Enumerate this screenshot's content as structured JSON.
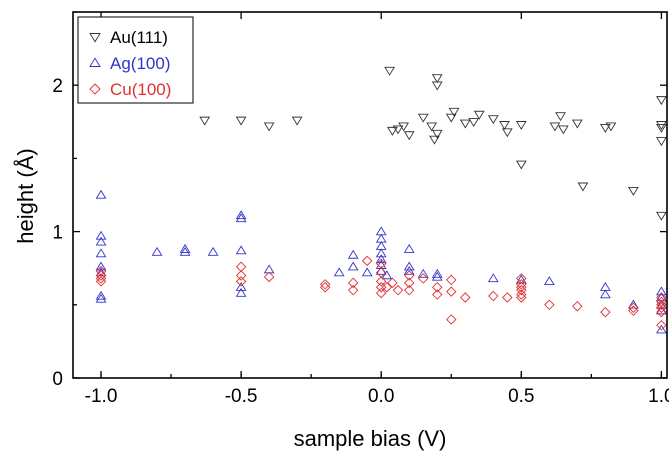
{
  "chart_data": {
    "type": "scatter",
    "xlabel": "sample bias (V)",
    "ylabel": "height (Å)",
    "xlim": [
      -1.1,
      1.02
    ],
    "ylim": [
      0,
      2.5
    ],
    "x_ticks": [
      -1.0,
      -0.5,
      0.0,
      0.5,
      1.0
    ],
    "x_tick_labels": [
      "-1.0",
      "-0.5",
      "0.0",
      "0.5",
      "1.0"
    ],
    "y_ticks": [
      0,
      1,
      2
    ],
    "y_tick_labels": [
      "0",
      "1",
      "2"
    ],
    "legend_position": "top-left",
    "series": [
      {
        "name": "Au(111)",
        "marker": "triangle-down",
        "color": "#333333",
        "points": [
          [
            -0.63,
            1.76
          ],
          [
            -0.5,
            1.76
          ],
          [
            -0.4,
            1.72
          ],
          [
            -0.3,
            1.76
          ],
          [
            0.03,
            2.1
          ],
          [
            0.04,
            1.69
          ],
          [
            0.06,
            1.7
          ],
          [
            0.08,
            1.72
          ],
          [
            0.1,
            1.66
          ],
          [
            0.15,
            1.78
          ],
          [
            0.18,
            1.72
          ],
          [
            0.19,
            1.63
          ],
          [
            0.2,
            2.05
          ],
          [
            0.2,
            2.0
          ],
          [
            0.2,
            1.67
          ],
          [
            0.25,
            1.78
          ],
          [
            0.26,
            1.82
          ],
          [
            0.3,
            1.74
          ],
          [
            0.33,
            1.75
          ],
          [
            0.35,
            1.8
          ],
          [
            0.4,
            1.77
          ],
          [
            0.44,
            1.73
          ],
          [
            0.45,
            1.68
          ],
          [
            0.5,
            1.73
          ],
          [
            0.5,
            1.46
          ],
          [
            0.62,
            1.72
          ],
          [
            0.64,
            1.79
          ],
          [
            0.65,
            1.7
          ],
          [
            0.7,
            1.74
          ],
          [
            0.72,
            1.31
          ],
          [
            0.8,
            1.71
          ],
          [
            0.82,
            1.72
          ],
          [
            0.9,
            1.28
          ],
          [
            1.0,
            1.9
          ],
          [
            1.0,
            1.73
          ],
          [
            1.0,
            1.71
          ],
          [
            1.0,
            1.62
          ],
          [
            1.0,
            1.11
          ]
        ]
      },
      {
        "name": "Ag(100)",
        "marker": "triangle-up",
        "color": "#3333cc",
        "points": [
          [
            -1.0,
            1.25
          ],
          [
            -1.0,
            0.97
          ],
          [
            -1.0,
            0.93
          ],
          [
            -1.0,
            0.85
          ],
          [
            -1.0,
            0.76
          ],
          [
            -1.0,
            0.72
          ],
          [
            -1.0,
            0.56
          ],
          [
            -1.0,
            0.54
          ],
          [
            -0.8,
            0.86
          ],
          [
            -0.7,
            0.88
          ],
          [
            -0.7,
            0.86
          ],
          [
            -0.6,
            0.86
          ],
          [
            -0.5,
            1.11
          ],
          [
            -0.5,
            1.09
          ],
          [
            -0.5,
            0.87
          ],
          [
            -0.5,
            0.62
          ],
          [
            -0.5,
            0.58
          ],
          [
            -0.4,
            0.74
          ],
          [
            -0.15,
            0.72
          ],
          [
            -0.1,
            0.84
          ],
          [
            -0.1,
            0.76
          ],
          [
            -0.05,
            0.72
          ],
          [
            0.0,
            1.0
          ],
          [
            0.0,
            0.95
          ],
          [
            0.0,
            0.9
          ],
          [
            0.0,
            0.85
          ],
          [
            0.0,
            0.81
          ],
          [
            0.0,
            0.77
          ],
          [
            0.0,
            0.73
          ],
          [
            0.02,
            0.7
          ],
          [
            0.1,
            0.88
          ],
          [
            0.1,
            0.76
          ],
          [
            0.1,
            0.73
          ],
          [
            0.15,
            0.71
          ],
          [
            0.2,
            0.71
          ],
          [
            0.2,
            0.69
          ],
          [
            0.4,
            0.68
          ],
          [
            0.5,
            0.67
          ],
          [
            0.6,
            0.66
          ],
          [
            0.8,
            0.62
          ],
          [
            0.8,
            0.57
          ],
          [
            0.9,
            0.5
          ],
          [
            1.0,
            0.59
          ],
          [
            1.0,
            0.55
          ],
          [
            1.0,
            0.5
          ],
          [
            1.0,
            0.46
          ],
          [
            1.0,
            0.33
          ]
        ]
      },
      {
        "name": "Cu(100)",
        "marker": "diamond",
        "color": "#e03030",
        "points": [
          [
            -1.0,
            0.73
          ],
          [
            -1.0,
            0.7
          ],
          [
            -1.0,
            0.68
          ],
          [
            -1.0,
            0.66
          ],
          [
            -0.5,
            0.76
          ],
          [
            -0.5,
            0.7
          ],
          [
            -0.5,
            0.66
          ],
          [
            -0.4,
            0.69
          ],
          [
            -0.2,
            0.64
          ],
          [
            -0.2,
            0.62
          ],
          [
            -0.1,
            0.65
          ],
          [
            -0.1,
            0.6
          ],
          [
            -0.05,
            0.8
          ],
          [
            0.0,
            0.78
          ],
          [
            0.0,
            0.72
          ],
          [
            0.0,
            0.66
          ],
          [
            0.0,
            0.62
          ],
          [
            0.0,
            0.58
          ],
          [
            0.02,
            0.62
          ],
          [
            0.04,
            0.65
          ],
          [
            0.06,
            0.6
          ],
          [
            0.1,
            0.7
          ],
          [
            0.1,
            0.65
          ],
          [
            0.1,
            0.6
          ],
          [
            0.15,
            0.68
          ],
          [
            0.2,
            0.62
          ],
          [
            0.2,
            0.57
          ],
          [
            0.25,
            0.67
          ],
          [
            0.25,
            0.59
          ],
          [
            0.25,
            0.4
          ],
          [
            0.3,
            0.55
          ],
          [
            0.4,
            0.56
          ],
          [
            0.45,
            0.55
          ],
          [
            0.5,
            0.68
          ],
          [
            0.5,
            0.64
          ],
          [
            0.5,
            0.62
          ],
          [
            0.5,
            0.6
          ],
          [
            0.5,
            0.57
          ],
          [
            0.5,
            0.55
          ],
          [
            0.6,
            0.5
          ],
          [
            0.7,
            0.49
          ],
          [
            0.8,
            0.45
          ],
          [
            0.9,
            0.48
          ],
          [
            0.9,
            0.46
          ],
          [
            1.0,
            0.55
          ],
          [
            1.0,
            0.52
          ],
          [
            1.0,
            0.5
          ],
          [
            1.0,
            0.48
          ],
          [
            1.0,
            0.45
          ],
          [
            1.0,
            0.36
          ]
        ]
      }
    ]
  }
}
